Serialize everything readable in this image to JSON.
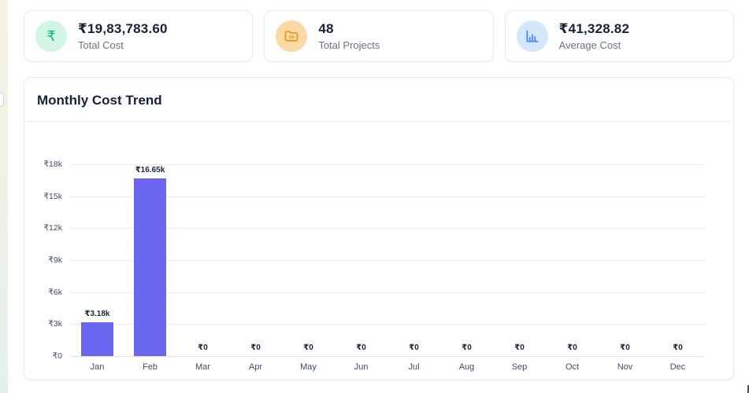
{
  "stat_cards": [
    {
      "value": "₹19,83,783.60",
      "label": "Total Cost",
      "icon": "rupee-icon",
      "icon_bg": "#d3f5e6",
      "icon_color": "#13b981",
      "rupee_glyph": "₹"
    },
    {
      "value": "48",
      "label": "Total Projects",
      "icon": "folder-icon",
      "icon_bg": "#fbd9a5",
      "icon_color": "#ee9112"
    },
    {
      "value": "₹41,328.82",
      "label": "Average Cost",
      "icon": "bar-chart-icon",
      "icon_bg": "#d5e7fb",
      "icon_color": "#3c83f6"
    }
  ],
  "chart_card": {
    "title": "Monthly Cost Trend"
  },
  "chart_data": {
    "type": "bar",
    "title": "Monthly Cost Trend",
    "categories": [
      "Jan",
      "Feb",
      "Mar",
      "Apr",
      "May",
      "Jun",
      "Jul",
      "Aug",
      "Sep",
      "Oct",
      "Nov",
      "Dec"
    ],
    "values": [
      3180,
      16650,
      0,
      0,
      0,
      0,
      0,
      0,
      0,
      0,
      0,
      0
    ],
    "bar_labels": [
      "₹3.18k",
      "₹16.65k",
      "₹0",
      "₹0",
      "₹0",
      "₹0",
      "₹0",
      "₹0",
      "₹0",
      "₹0",
      "₹0",
      "₹0"
    ],
    "y_ticks": [
      "₹18k",
      "₹15k",
      "₹12k",
      "₹9k",
      "₹6k",
      "₹3k",
      "₹0"
    ],
    "y_tick_values": [
      18000,
      15000,
      12000,
      9000,
      6000,
      3000,
      0
    ],
    "ylim": [
      0,
      18000
    ],
    "xlabel": "",
    "ylabel": "",
    "grid": true,
    "legend": false,
    "bar_color": "#6a66ef",
    "gridline_color": "#e9edf1",
    "tick_color": "#404e63",
    "bar_label_color": "#1b2435"
  }
}
